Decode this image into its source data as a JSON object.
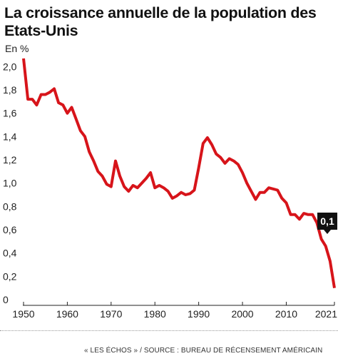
{
  "chart_data": {
    "type": "line",
    "title": "La croissance annuelle de la population des Etats-Unis",
    "unit": "En %",
    "source": "« LES ÉCHOS » / SOURCE : BUREAU DE RÉCENSEMENT AMÉRICAIN",
    "x_ticks": [
      "1950",
      "1960",
      "1970",
      "1980",
      "1990",
      "2000",
      "2010",
      "2021"
    ],
    "y_ticks": [
      "0",
      "0,2",
      "0,4",
      "0,6",
      "0,8",
      "1,0",
      "1,2",
      "1,4",
      "1,6",
      "1,8",
      "2,0"
    ],
    "xlim": [
      1950,
      2021
    ],
    "ylim": [
      0,
      2.1
    ],
    "grid": false,
    "line_color": "#d7141a",
    "annotation": {
      "text": "0,1",
      "x": 2021,
      "y": 0.1
    },
    "series": [
      {
        "x": [
          1950,
          1951,
          1952,
          1953,
          1954,
          1955,
          1956,
          1957,
          1958,
          1959,
          1960,
          1961,
          1962,
          1963,
          1964,
          1965,
          1966,
          1967,
          1968,
          1969,
          1970,
          1971,
          1972,
          1973,
          1974,
          1975,
          1976,
          1977,
          1978,
          1979,
          1980,
          1981,
          1982,
          1983,
          1984,
          1985,
          1986,
          1987,
          1988,
          1989,
          1990,
          1991,
          1992,
          1993,
          1994,
          1995,
          1996,
          1997,
          1998,
          1999,
          2000,
          2001,
          2002,
          2003,
          2004,
          2005,
          2006,
          2007,
          2008,
          2009,
          2010,
          2011,
          2012,
          2013,
          2014,
          2015,
          2016,
          2017,
          2018,
          2019,
          2020,
          2021
        ],
        "values": [
          2.07,
          1.72,
          1.72,
          1.67,
          1.76,
          1.76,
          1.78,
          1.81,
          1.69,
          1.67,
          1.6,
          1.65,
          1.55,
          1.45,
          1.4,
          1.27,
          1.19,
          1.1,
          1.06,
          0.99,
          0.97,
          1.19,
          1.06,
          0.97,
          0.93,
          0.98,
          0.96,
          1.0,
          1.04,
          1.09,
          0.96,
          0.98,
          0.96,
          0.93,
          0.87,
          0.89,
          0.92,
          0.9,
          0.91,
          0.94,
          1.13,
          1.34,
          1.39,
          1.33,
          1.25,
          1.22,
          1.17,
          1.21,
          1.19,
          1.16,
          1.09,
          1.0,
          0.93,
          0.86,
          0.92,
          0.92,
          0.96,
          0.95,
          0.94,
          0.87,
          0.83,
          0.73,
          0.73,
          0.69,
          0.74,
          0.73,
          0.73,
          0.66,
          0.52,
          0.46,
          0.33,
          0.1
        ]
      }
    ]
  }
}
